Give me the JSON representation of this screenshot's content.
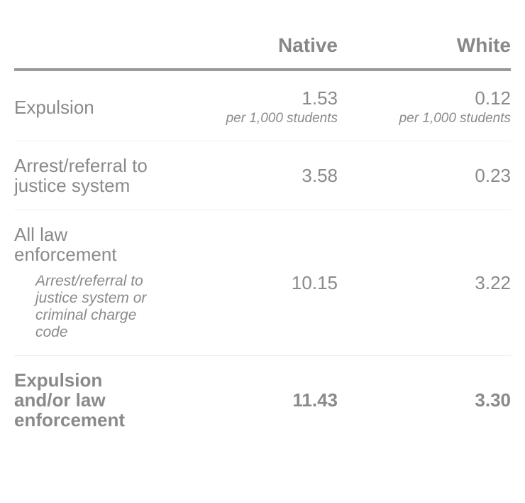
{
  "columns": [
    "",
    "Native",
    "White"
  ],
  "unit": "per 1,000 students",
  "rows": [
    {
      "label": "Expulsion",
      "native": "1.53",
      "white": "0.12",
      "native_unit": "per 1,000 students",
      "white_unit": "per 1,000 students"
    },
    {
      "label": "Arrest/referral to justice system",
      "native": "3.58",
      "white": "0.23"
    },
    {
      "label": "All law enforcement",
      "note": "Arrest/referral to justice system or criminal charge code",
      "native": "10.15",
      "white": "3.22"
    },
    {
      "label": "Expulsion and/or law enforcement",
      "native": "11.43",
      "white": "3.30"
    }
  ],
  "colors": {
    "text": "#8a8a8a",
    "header_rule": "#9a9a9a",
    "row_divider": "#efefef"
  }
}
